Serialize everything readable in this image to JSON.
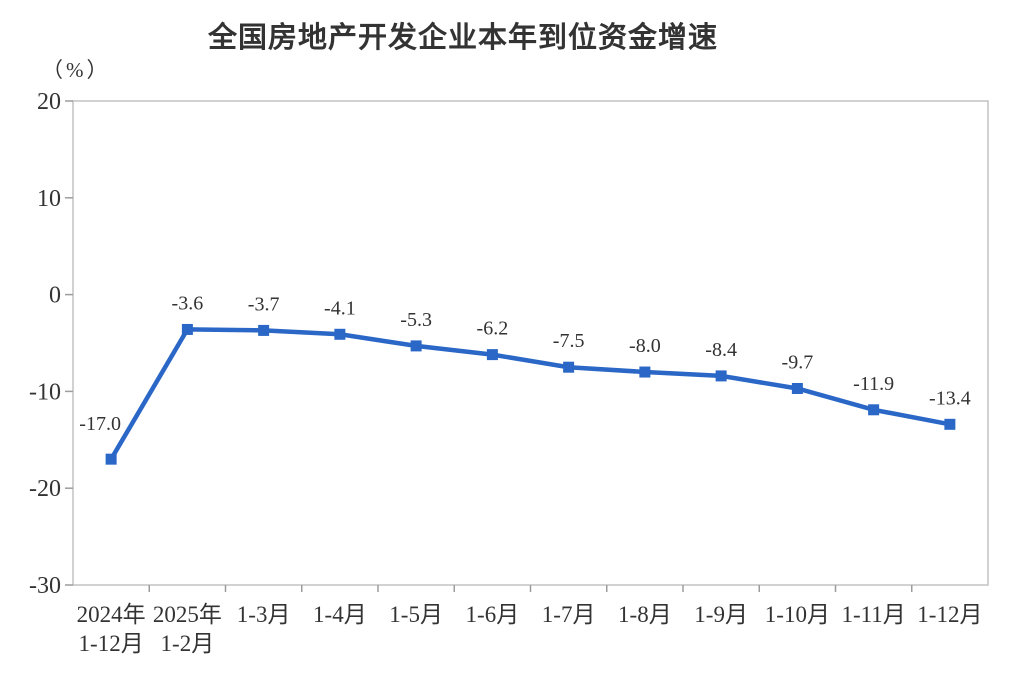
{
  "chart": {
    "title": "全国房地产开发企业本年到位资金增速",
    "unit_label": "（%）"
  },
  "chart_data": {
    "type": "line",
    "title": "全国房地产开发企业本年到位资金增速",
    "ylabel": "（%）",
    "xlabel": "",
    "categories": [
      [
        "2024年",
        "1-12月"
      ],
      [
        "2025年",
        "1-2月"
      ],
      [
        "1-3月"
      ],
      [
        "1-4月"
      ],
      [
        "1-5月"
      ],
      [
        "1-6月"
      ],
      [
        "1-7月"
      ],
      [
        "1-8月"
      ],
      [
        "1-9月"
      ],
      [
        "1-10月"
      ],
      [
        "1-11月"
      ],
      [
        "1-12月"
      ]
    ],
    "values": [
      -17.0,
      -3.6,
      -3.7,
      -4.1,
      -5.3,
      -6.2,
      -7.5,
      -8.0,
      -8.4,
      -9.7,
      -11.9,
      -13.4
    ],
    "point_labels": [
      "-17.0",
      "-3.6",
      "-3.7",
      "-4.1",
      "-5.3",
      "-6.2",
      "-7.5",
      "-8.0",
      "-8.4",
      "-9.7",
      "-11.9",
      "-13.4"
    ],
    "ylim": [
      -30,
      20
    ],
    "yticks": [
      20,
      10,
      0,
      -10,
      -20,
      -30
    ],
    "grid": false,
    "legend": "none",
    "marker": "square",
    "line_color": "#2A67C6",
    "marker_color": "#2A67C6",
    "text_color": "#333333",
    "axis_color": "#c2c2c2",
    "tick_color": "#9c9c9c",
    "label_offsets": {
      "default": [
        0,
        -20
      ],
      "0": [
        -11,
        -29
      ]
    }
  }
}
